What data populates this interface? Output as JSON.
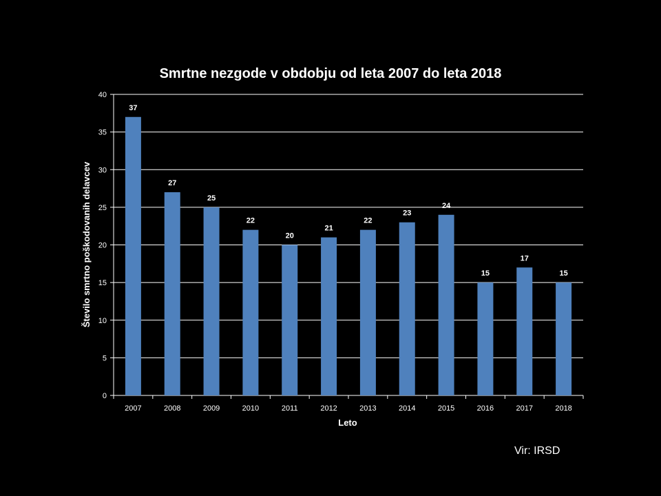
{
  "chart_data": {
    "type": "bar",
    "title": "Smrtne nezgode v obdobju od leta 2007 do leta 2018",
    "xlabel": "Leto",
    "ylabel": "Število smrtno poškodovanih delavcev",
    "categories": [
      "2007",
      "2008",
      "2009",
      "2010",
      "2011",
      "2012",
      "2013",
      "2014",
      "2015",
      "2016",
      "2017",
      "2018"
    ],
    "values": [
      37,
      27,
      25,
      22,
      20,
      21,
      22,
      23,
      24,
      15,
      17,
      15
    ],
    "data_labels": [
      "37",
      "27",
      "25",
      "22",
      "20",
      "21",
      "22",
      "23",
      "24",
      "15",
      "17",
      "15"
    ],
    "ylim": [
      0,
      40
    ],
    "yticks": [
      0,
      5,
      10,
      15,
      20,
      25,
      30,
      35,
      40
    ],
    "grid": true,
    "legend": "none",
    "colors": {
      "bar": "#4f81bd",
      "background": "#000000",
      "text": "#ffffff",
      "grid": "#ffffff"
    }
  },
  "source": "Vir: IRSD"
}
